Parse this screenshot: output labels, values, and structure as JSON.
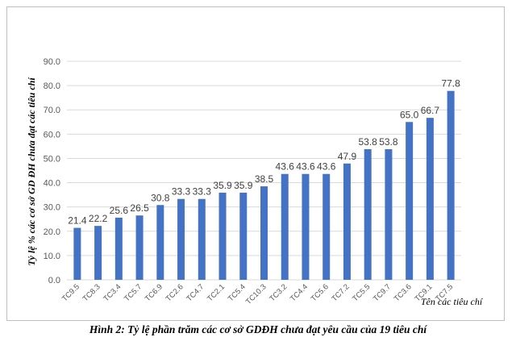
{
  "caption": "Hình 2: Tỷ lệ phần trăm các cơ sở GDĐH chưa đạt yêu cầu của 19 tiêu chí",
  "chart_data": {
    "type": "bar",
    "categories": [
      "TC9.5",
      "TC8.3",
      "TC3.4",
      "TC5.7",
      "TC6.9",
      "TC2.6",
      "TC4.7",
      "TC2.1",
      "TC5.4",
      "TC10.3",
      "TC3.2",
      "TC4.4",
      "TC5.6",
      "TC7.2",
      "TC5.5",
      "TC9.7",
      "TC3.6",
      "TC9.1",
      "TC7.5"
    ],
    "values": [
      21.4,
      22.2,
      25.6,
      26.5,
      30.8,
      33.3,
      33.3,
      35.9,
      35.9,
      38.5,
      43.6,
      43.6,
      43.6,
      47.9,
      53.8,
      53.8,
      65.0,
      66.7,
      77.8
    ],
    "value_labels": [
      "21.4",
      "22.2",
      "25.6",
      "26.5",
      "30.8",
      "33.3",
      "33.3",
      "35.9",
      "35.9",
      "38.5",
      "43.6",
      "43.6",
      "43.6",
      "47.9",
      "53.8",
      "53.8",
      "65.0",
      "66.7",
      "77.8"
    ],
    "yticks": [
      "0.0",
      "10.0",
      "20.0",
      "30.0",
      "40.0",
      "50.0",
      "60.0",
      "70.0",
      "80.0",
      "90.0"
    ],
    "ylim": [
      0,
      90
    ],
    "ylabel": "Tỷ lệ % các cơ sở GD ĐH chưa đạt các tiêu chí",
    "xlabel": "Tên các tiêu chí",
    "grid": true,
    "bar_color": "#4472c4",
    "grid_color": "#d9d9d9"
  }
}
